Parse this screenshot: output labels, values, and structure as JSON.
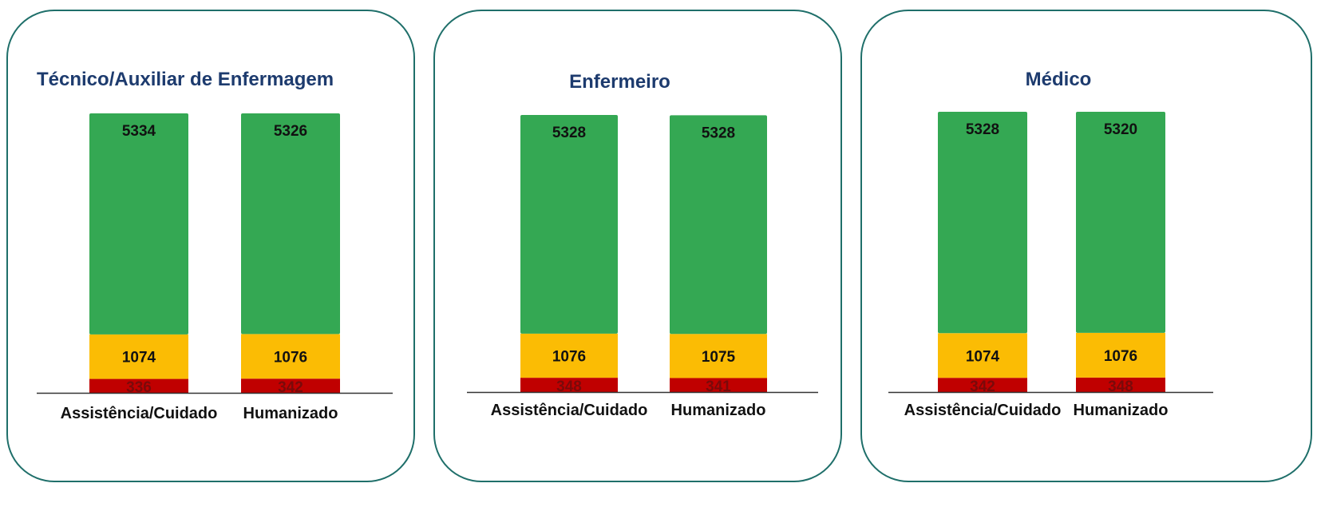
{
  "colors": {
    "green": "#34a853",
    "yellow": "#fbbc04",
    "red": "#c00000",
    "border": "#1f6f6a",
    "title": "#1d3b6e"
  },
  "chart_data": [
    {
      "type": "bar",
      "stacked": true,
      "title": "Técnico/Auxiliar de Enfermagem",
      "categories": [
        "Assistência/Cuidado",
        "Humanizado"
      ],
      "series": [
        {
          "color": "#c00000",
          "values": [
            336,
            342
          ]
        },
        {
          "color": "#fbbc04",
          "values": [
            1074,
            1076
          ]
        },
        {
          "color": "#34a853",
          "values": [
            5334,
            5326
          ]
        }
      ]
    },
    {
      "type": "bar",
      "stacked": true,
      "title": "Enfermeiro",
      "categories": [
        "Assistência/Cuidado",
        "Humanizado"
      ],
      "series": [
        {
          "color": "#c00000",
          "values": [
            348,
            341
          ]
        },
        {
          "color": "#fbbc04",
          "values": [
            1076,
            1075
          ]
        },
        {
          "color": "#34a853",
          "values": [
            5328,
            5328
          ]
        }
      ]
    },
    {
      "type": "bar",
      "stacked": true,
      "title": "Médico",
      "categories": [
        "Assistência/Cuidado",
        "Humanizado"
      ],
      "series": [
        {
          "color": "#c00000",
          "values": [
            342,
            348
          ]
        },
        {
          "color": "#fbbc04",
          "values": [
            1074,
            1076
          ]
        },
        {
          "color": "#34a853",
          "values": [
            5328,
            5320
          ]
        }
      ]
    }
  ]
}
